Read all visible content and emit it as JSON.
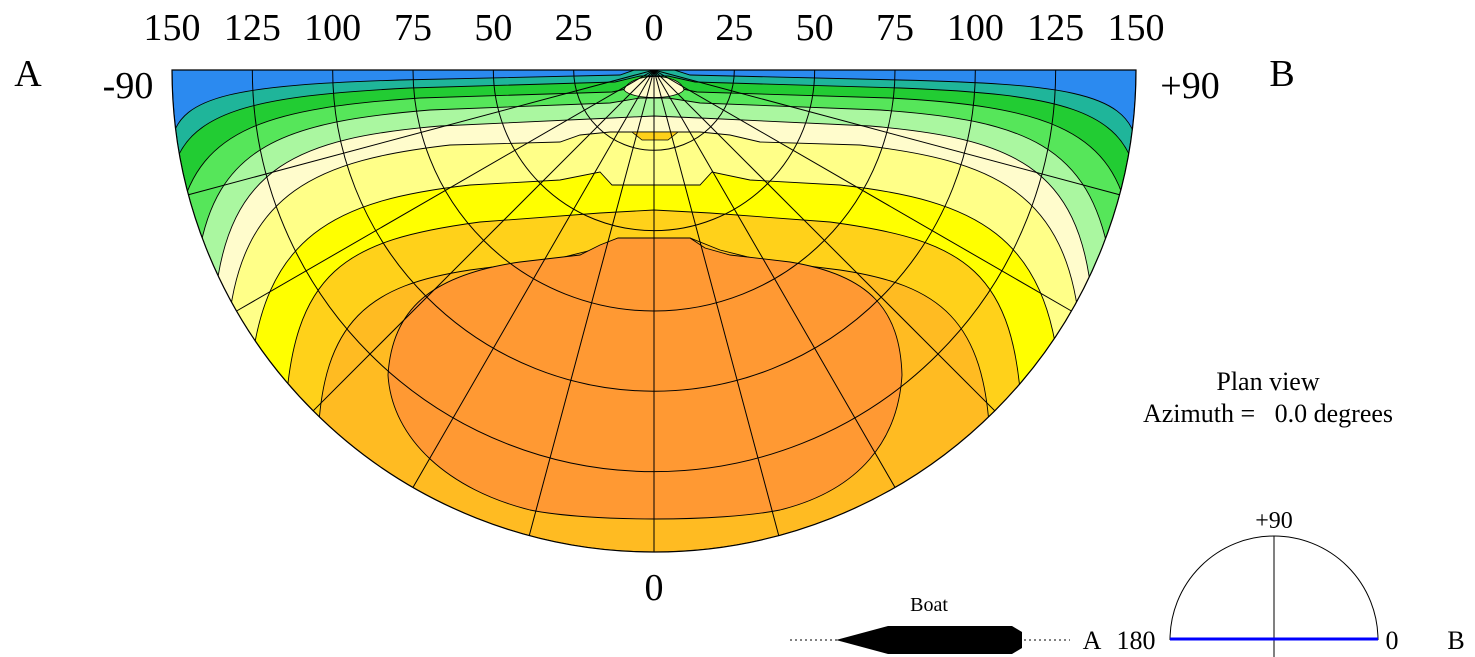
{
  "scale": {
    "top_ticks": [
      "150",
      "125",
      "100",
      "75",
      "50",
      "25",
      "0",
      "25",
      "50",
      "75",
      "100",
      "125",
      "150"
    ],
    "left_angle": "-90",
    "right_angle": "+90",
    "bottom_angle": "0"
  },
  "side_labels": {
    "left": "A",
    "right": "B"
  },
  "view": {
    "title": "Plan view",
    "azimuth_line": "Azimuth =   0.0 degrees"
  },
  "boat": {
    "label": "Boat"
  },
  "orientation_indicator": {
    "top_label": "+90",
    "left_label": "A",
    "left_angle": "180",
    "right_angle": "0",
    "right_label": "B"
  },
  "colors": {
    "band_blue": "#2b8af0",
    "band_teal": "#1fb59a",
    "band_green": "#22cc33",
    "band_light_green": "#56e65a",
    "band_pale_green": "#aaf7a0",
    "band_cream": "#fffccc",
    "band_light_yellow": "#ffff88",
    "band_yellow": "#ffff00",
    "band_gold": "#ffd11a",
    "band_orange_yellow": "#ffbb22",
    "band_orange": "#ff9933",
    "indicator_line": "#0000ff"
  }
}
